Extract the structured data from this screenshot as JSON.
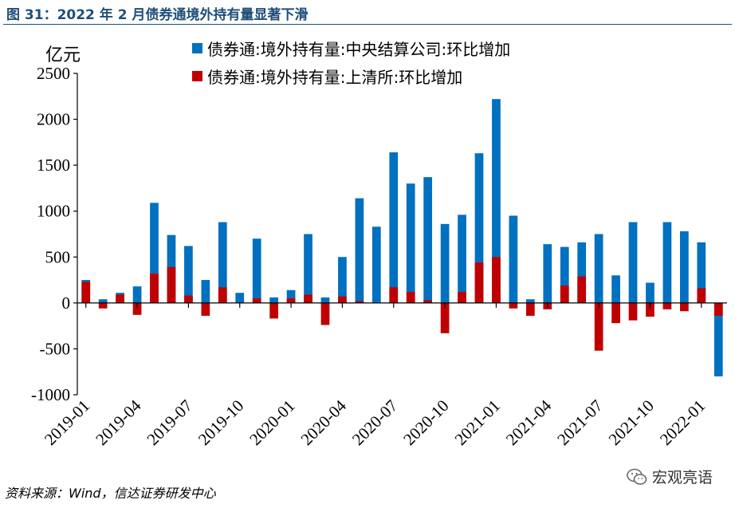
{
  "figure_title": "图 31：2022 年 2 月债券通境外持有量显著下滑",
  "source_note": "资料来源：Wind，信达证券研发中心",
  "watermark": {
    "text": "宏观亮语",
    "icon": "wechat-icon"
  },
  "chart_data": {
    "type": "bar",
    "stacked": true,
    "ylabel": "亿元",
    "ylim": [
      -1000,
      2500
    ],
    "yticks": [
      2500,
      2000,
      1500,
      1000,
      500,
      0,
      -500,
      -1000
    ],
    "grid": false,
    "legend_position": "top",
    "x": [
      "2019-01",
      "2019-02",
      "2019-03",
      "2019-04",
      "2019-05",
      "2019-06",
      "2019-07",
      "2019-08",
      "2019-09",
      "2019-10",
      "2019-11",
      "2019-12",
      "2020-01",
      "2020-02",
      "2020-03",
      "2020-04",
      "2020-05",
      "2020-06",
      "2020-07",
      "2020-08",
      "2020-09",
      "2020-10",
      "2020-11",
      "2020-12",
      "2021-01",
      "2021-02",
      "2021-03",
      "2021-04",
      "2021-05",
      "2021-06",
      "2021-07",
      "2021-08",
      "2021-09",
      "2021-10",
      "2021-11",
      "2021-12",
      "2022-01",
      "2022-02"
    ],
    "tick_labels": [
      "2019-01",
      "2019-04",
      "2019-07",
      "2019-10",
      "2020-01",
      "2020-04",
      "2020-07",
      "2020-10",
      "2021-01",
      "2021-04",
      "2021-07",
      "2021-10",
      "2022-01"
    ],
    "series": [
      {
        "name": "债券通:境外持有量:中央结算公司:环比增加",
        "color": "#0070c0",
        "values": [
          250,
          40,
          110,
          180,
          1090,
          740,
          620,
          250,
          880,
          110,
          700,
          60,
          140,
          750,
          60,
          500,
          1140,
          830,
          1640,
          1300,
          1370,
          860,
          960,
          1630,
          2220,
          950,
          40,
          640,
          610,
          660,
          750,
          300,
          880,
          220,
          880,
          780,
          660,
          -800
        ]
      },
      {
        "name": "债券通:境外持有量:上清所:环比增加",
        "color": "#c00000",
        "values": [
          230,
          -60,
          90,
          -130,
          320,
          390,
          80,
          -140,
          170,
          0,
          50,
          -170,
          50,
          90,
          -240,
          70,
          20,
          0,
          170,
          120,
          30,
          -330,
          120,
          440,
          500,
          -60,
          -140,
          -70,
          190,
          290,
          -520,
          -220,
          -190,
          -150,
          -70,
          -90,
          160,
          -140
        ]
      }
    ]
  }
}
